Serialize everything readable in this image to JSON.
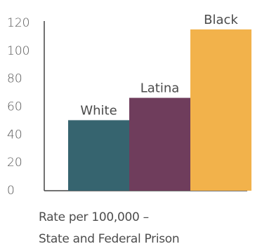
{
  "chart_data": {
    "type": "bar",
    "categories": [
      "White",
      "Latina",
      "Black"
    ],
    "values": [
      50,
      66,
      115
    ],
    "colors": [
      "#36646f",
      "#6f3d5c",
      "#f2b24b"
    ],
    "ylim": [
      0,
      120
    ],
    "yticks": [
      "0",
      "20",
      "40",
      "60",
      "80",
      "100",
      "120"
    ],
    "grid": false,
    "caption_lines": [
      "Rate per 100,000 –",
      "State and Federal Prison"
    ]
  }
}
